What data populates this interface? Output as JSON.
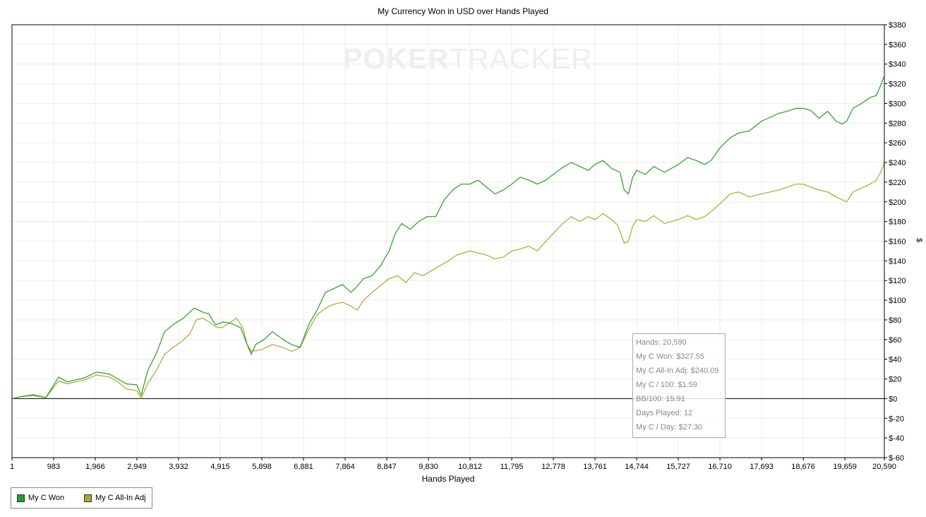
{
  "chart_data": {
    "type": "line",
    "title": "My Currency Won in USD over Hands Played",
    "xlabel": "Hands Played",
    "ylabel": "$",
    "xlim": [
      1,
      20590
    ],
    "ylim": [
      -60,
      380
    ],
    "x_ticks": [
      "1",
      "983",
      "1,966",
      "2,949",
      "3,932",
      "4,915",
      "5,898",
      "6,881",
      "7,864",
      "8,847",
      "9,830",
      "10,812",
      "11,795",
      "12,778",
      "13,761",
      "14,744",
      "15,727",
      "16,710",
      "17,693",
      "18,676",
      "19,659",
      "20,590"
    ],
    "x_tick_values": [
      1,
      983,
      1966,
      2949,
      3932,
      4915,
      5898,
      6881,
      7864,
      8847,
      9830,
      10812,
      11795,
      12778,
      13761,
      14744,
      15727,
      16710,
      17693,
      18676,
      19659,
      20590
    ],
    "y_ticks": [
      "$380",
      "$360",
      "$340",
      "$320",
      "$300",
      "$280",
      "$260",
      "$240",
      "$220",
      "$200",
      "$180",
      "$160",
      "$140",
      "$120",
      "$100",
      "$80",
      "$60",
      "$40",
      "$20",
      "$0",
      "$-20",
      "$-40",
      "$-60"
    ],
    "y_tick_values": [
      380,
      360,
      340,
      320,
      300,
      280,
      260,
      240,
      220,
      200,
      180,
      160,
      140,
      120,
      100,
      80,
      60,
      40,
      20,
      0,
      -20,
      -40,
      -60
    ],
    "grid": true,
    "legend_position": "bottom-left",
    "series": [
      {
        "name": "My C Won",
        "color": "#22a022",
        "points": [
          [
            1,
            0
          ],
          [
            200,
            2
          ],
          [
            500,
            4
          ],
          [
            800,
            1
          ],
          [
            1100,
            22
          ],
          [
            1300,
            17
          ],
          [
            1700,
            21
          ],
          [
            2000,
            27
          ],
          [
            2300,
            25
          ],
          [
            2500,
            20
          ],
          [
            2700,
            15
          ],
          [
            2949,
            14
          ],
          [
            3050,
            3
          ],
          [
            3200,
            28
          ],
          [
            3400,
            45
          ],
          [
            3600,
            68
          ],
          [
            3800,
            75
          ],
          [
            4050,
            82
          ],
          [
            4300,
            92
          ],
          [
            4500,
            88
          ],
          [
            4650,
            86
          ],
          [
            4800,
            75
          ],
          [
            5000,
            78
          ],
          [
            5200,
            76
          ],
          [
            5400,
            72
          ],
          [
            5550,
            55
          ],
          [
            5650,
            45
          ],
          [
            5750,
            55
          ],
          [
            5950,
            60
          ],
          [
            6150,
            68
          ],
          [
            6400,
            60
          ],
          [
            6600,
            55
          ],
          [
            6800,
            52
          ],
          [
            7000,
            75
          ],
          [
            7200,
            90
          ],
          [
            7400,
            108
          ],
          [
            7600,
            112
          ],
          [
            7800,
            116
          ],
          [
            8000,
            108
          ],
          [
            8100,
            112
          ],
          [
            8300,
            122
          ],
          [
            8500,
            125
          ],
          [
            8700,
            135
          ],
          [
            8900,
            150
          ],
          [
            9050,
            168
          ],
          [
            9200,
            178
          ],
          [
            9400,
            172
          ],
          [
            9600,
            180
          ],
          [
            9800,
            185
          ],
          [
            10000,
            185
          ],
          [
            10200,
            202
          ],
          [
            10400,
            212
          ],
          [
            10600,
            218
          ],
          [
            10812,
            218
          ],
          [
            11000,
            222
          ],
          [
            11200,
            215
          ],
          [
            11400,
            208
          ],
          [
            11600,
            212
          ],
          [
            11795,
            218
          ],
          [
            12000,
            225
          ],
          [
            12200,
            222
          ],
          [
            12400,
            218
          ],
          [
            12600,
            222
          ],
          [
            12778,
            228
          ],
          [
            13000,
            235
          ],
          [
            13200,
            240
          ],
          [
            13400,
            236
          ],
          [
            13600,
            232
          ],
          [
            13761,
            238
          ],
          [
            13950,
            242
          ],
          [
            14150,
            234
          ],
          [
            14350,
            230
          ],
          [
            14450,
            212
          ],
          [
            14550,
            208
          ],
          [
            14650,
            225
          ],
          [
            14744,
            232
          ],
          [
            14950,
            228
          ],
          [
            15150,
            236
          ],
          [
            15400,
            230
          ],
          [
            15727,
            238
          ],
          [
            15950,
            245
          ],
          [
            16150,
            242
          ],
          [
            16350,
            238
          ],
          [
            16500,
            242
          ],
          [
            16710,
            255
          ],
          [
            16950,
            265
          ],
          [
            17150,
            270
          ],
          [
            17400,
            272
          ],
          [
            17693,
            282
          ],
          [
            17900,
            286
          ],
          [
            18100,
            290
          ],
          [
            18300,
            292
          ],
          [
            18500,
            295
          ],
          [
            18676,
            295
          ],
          [
            18850,
            293
          ],
          [
            19050,
            285
          ],
          [
            19250,
            292
          ],
          [
            19450,
            282
          ],
          [
            19600,
            279
          ],
          [
            19700,
            282
          ],
          [
            19850,
            295
          ],
          [
            20050,
            300
          ],
          [
            20250,
            306
          ],
          [
            20400,
            308
          ],
          [
            20500,
            318
          ],
          [
            20560,
            325
          ],
          [
            20590,
            327.55
          ]
        ]
      },
      {
        "name": "My C All-In Adj",
        "color": "#a8a830",
        "points": [
          [
            1,
            0
          ],
          [
            200,
            2
          ],
          [
            500,
            3
          ],
          [
            800,
            1
          ],
          [
            1100,
            18
          ],
          [
            1300,
            15
          ],
          [
            1700,
            19
          ],
          [
            2000,
            24
          ],
          [
            2300,
            22
          ],
          [
            2500,
            17
          ],
          [
            2700,
            10
          ],
          [
            2949,
            8
          ],
          [
            3050,
            0
          ],
          [
            3200,
            15
          ],
          [
            3400,
            28
          ],
          [
            3600,
            45
          ],
          [
            3800,
            52
          ],
          [
            4000,
            58
          ],
          [
            4200,
            66
          ],
          [
            4350,
            80
          ],
          [
            4500,
            82
          ],
          [
            4650,
            78
          ],
          [
            4800,
            73
          ],
          [
            4950,
            72
          ],
          [
            5100,
            76
          ],
          [
            5300,
            82
          ],
          [
            5450,
            72
          ],
          [
            5550,
            55
          ],
          [
            5650,
            48
          ],
          [
            5900,
            50
          ],
          [
            6150,
            55
          ],
          [
            6400,
            52
          ],
          [
            6600,
            48
          ],
          [
            6800,
            52
          ],
          [
            7000,
            70
          ],
          [
            7200,
            85
          ],
          [
            7400,
            92
          ],
          [
            7600,
            96
          ],
          [
            7800,
            98
          ],
          [
            8000,
            94
          ],
          [
            8150,
            90
          ],
          [
            8300,
            100
          ],
          [
            8500,
            108
          ],
          [
            8700,
            115
          ],
          [
            8900,
            122
          ],
          [
            9100,
            125
          ],
          [
            9300,
            118
          ],
          [
            9500,
            128
          ],
          [
            9700,
            125
          ],
          [
            9900,
            130
          ],
          [
            10100,
            135
          ],
          [
            10300,
            140
          ],
          [
            10500,
            146
          ],
          [
            10812,
            150
          ],
          [
            11000,
            148
          ],
          [
            11200,
            146
          ],
          [
            11400,
            142
          ],
          [
            11600,
            144
          ],
          [
            11795,
            150
          ],
          [
            12000,
            152
          ],
          [
            12200,
            155
          ],
          [
            12400,
            150
          ],
          [
            12600,
            160
          ],
          [
            12778,
            168
          ],
          [
            13000,
            178
          ],
          [
            13200,
            185
          ],
          [
            13400,
            180
          ],
          [
            13600,
            185
          ],
          [
            13761,
            182
          ],
          [
            13950,
            188
          ],
          [
            14150,
            182
          ],
          [
            14300,
            176
          ],
          [
            14450,
            158
          ],
          [
            14550,
            160
          ],
          [
            14650,
            175
          ],
          [
            14744,
            182
          ],
          [
            14950,
            180
          ],
          [
            15150,
            186
          ],
          [
            15400,
            178
          ],
          [
            15727,
            182
          ],
          [
            15950,
            186
          ],
          [
            16150,
            182
          ],
          [
            16350,
            185
          ],
          [
            16500,
            190
          ],
          [
            16710,
            198
          ],
          [
            16950,
            208
          ],
          [
            17150,
            210
          ],
          [
            17400,
            205
          ],
          [
            17693,
            208
          ],
          [
            17900,
            210
          ],
          [
            18100,
            212
          ],
          [
            18300,
            215
          ],
          [
            18500,
            218
          ],
          [
            18676,
            218
          ],
          [
            18850,
            215
          ],
          [
            19050,
            212
          ],
          [
            19250,
            210
          ],
          [
            19450,
            205
          ],
          [
            19600,
            202
          ],
          [
            19700,
            200
          ],
          [
            19850,
            210
          ],
          [
            20050,
            214
          ],
          [
            20250,
            218
          ],
          [
            20400,
            222
          ],
          [
            20500,
            230
          ],
          [
            20560,
            236
          ],
          [
            20590,
            240.09
          ]
        ]
      }
    ]
  },
  "watermark": {
    "bold": "POKER",
    "thin": "TRACKER"
  },
  "tooltip": {
    "hands": "Hands: 20,590",
    "won": "My C Won: $327.55",
    "all_in_adj": "My C All-In Adj: $240.09",
    "per_100": "My C / 100: $1.59",
    "bb_100": "BB/100: 15.91",
    "days_played": "Days Played: 12",
    "per_day": "My C / Day: $27.30"
  }
}
